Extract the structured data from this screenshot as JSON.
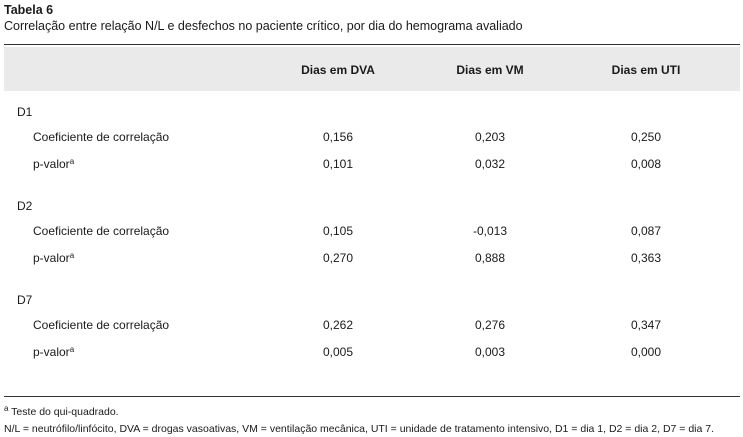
{
  "title": "Tabela 6",
  "subtitle": "Correlação entre relação N/L e desfechos no paciente crítico, por dia do hemograma avaliado",
  "table": {
    "columns": [
      "Dias em DVA",
      "Dias em VM",
      "Dias em UTI"
    ],
    "groups": [
      {
        "label": "D1",
        "rows": [
          {
            "label": "Coeficiente de correlação",
            "values": [
              "0,156",
              "0,203",
              "0,250"
            ]
          },
          {
            "label": "p-valor",
            "sup": "a",
            "values": [
              "0,101",
              "0,032",
              "0,008"
            ]
          }
        ]
      },
      {
        "label": "D2",
        "rows": [
          {
            "label": "Coeficiente de correlação",
            "values": [
              "0,105",
              "-0,013",
              "0,087"
            ]
          },
          {
            "label": "p-valor",
            "sup": "a",
            "values": [
              "0,270",
              "0,888",
              "0,363"
            ]
          }
        ]
      },
      {
        "label": "D7",
        "rows": [
          {
            "label": "Coeficiente de correlação",
            "values": [
              "0,262",
              "0,276",
              "0,347"
            ]
          },
          {
            "label": "p-valor",
            "sup": "a",
            "values": [
              "0,005",
              "0,003",
              "0,000"
            ]
          }
        ]
      }
    ]
  },
  "footnotes": [
    {
      "marker": "a",
      "text": " Teste do qui-quadrado."
    },
    {
      "text": "N/L = neutrófilo/linfócito, DVA = drogas vasoativas, VM = ventilação mecânica, UTI = unidade de tratamento intensivo, D1 = dia 1, D2 = dia 2, D7 = dia 7."
    }
  ]
}
